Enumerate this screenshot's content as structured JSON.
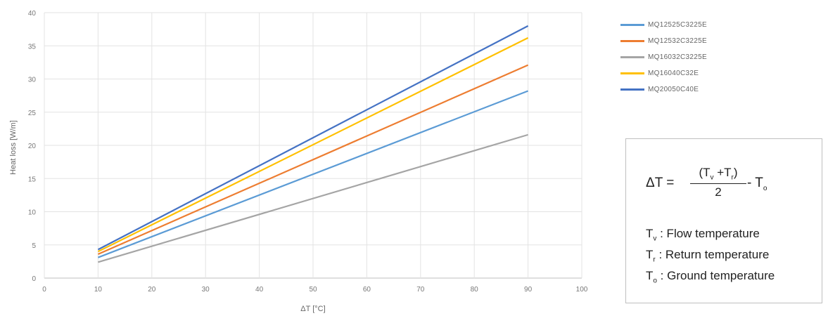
{
  "chart_data": {
    "type": "line",
    "title": "",
    "xlabel": "ΔT [°C]",
    "ylabel": "Heat loss [W/m]",
    "xlim": [
      0,
      100
    ],
    "ylim": [
      0,
      40
    ],
    "x_ticks": [
      0,
      10,
      20,
      30,
      40,
      50,
      60,
      70,
      80,
      90,
      100
    ],
    "y_ticks": [
      0,
      5,
      10,
      15,
      20,
      25,
      30,
      35,
      40
    ],
    "grid": true,
    "legend_position": "right",
    "x": [
      10,
      90
    ],
    "series": [
      {
        "name": "MQ12525C3225E",
        "color": "#5b9bd5",
        "values": [
          3.1,
          28.2
        ]
      },
      {
        "name": "MQ12532C3225E",
        "color": "#ed7d31",
        "values": [
          3.6,
          32.1
        ]
      },
      {
        "name": "MQ16032C3225E",
        "color": "#a5a5a5",
        "values": [
          2.4,
          21.6
        ]
      },
      {
        "name": "MQ16040C32E",
        "color": "#ffc000",
        "values": [
          4.0,
          36.2
        ]
      },
      {
        "name": "MQ20050C40E",
        "color": "#4472c4",
        "values": [
          4.3,
          38.0
        ]
      }
    ]
  },
  "formula": {
    "lhs": "ΔT =",
    "numerator_open": "(T",
    "sub_v": "v",
    "numerator_plus": " +T",
    "sub_r": "r",
    "numerator_close": ")",
    "denominator": "2",
    "rhs_minus": "- T",
    "sub_o": "o"
  },
  "definitions": [
    {
      "symbol": "T",
      "sub": "v",
      "text": " : Flow temperature"
    },
    {
      "symbol": "T",
      "sub": "r",
      "text": " : Return temperature"
    },
    {
      "symbol": "T",
      "sub": "o",
      "text": " : Ground temperature"
    }
  ]
}
